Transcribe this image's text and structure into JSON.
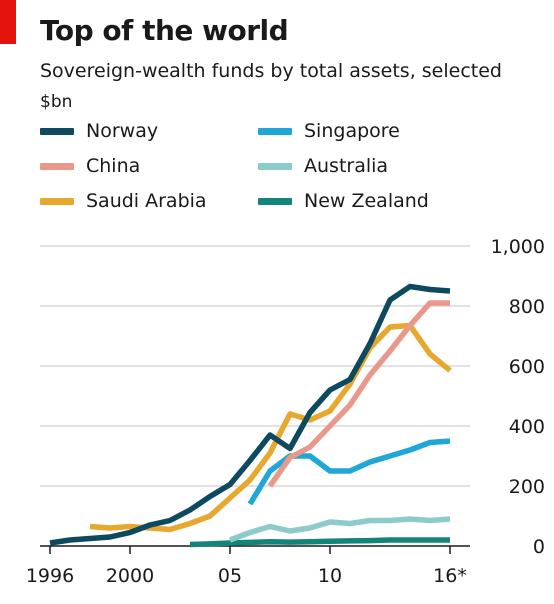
{
  "header": {
    "title": "Top of the world",
    "subtitle": "Sovereign-wealth funds by total assets, selected",
    "unit": "$bn"
  },
  "colors": {
    "accent_red": "#e3120b",
    "grid": "#d9d9d9",
    "axis": "#1a1a1a"
  },
  "chart_data": {
    "type": "line",
    "title": "Top of the world",
    "subtitle": "Sovereign-wealth funds by total assets, selected",
    "ylabel": "$bn",
    "xlim": [
      1995.5,
      2017
    ],
    "ylim": [
      0,
      1000
    ],
    "y_ticks": [
      0,
      200,
      400,
      600,
      800,
      1000
    ],
    "y_tick_labels": [
      "0",
      "200",
      "400",
      "600",
      "800",
      "1,000"
    ],
    "x_ticks": [
      1996,
      2000,
      2005,
      2010,
      2016
    ],
    "x_tick_labels": [
      "1996",
      "2000",
      "05",
      "10",
      "16*"
    ],
    "grid": true,
    "legend_position": "top-left, two columns",
    "series": [
      {
        "name": "Norway",
        "color": "#0d4a5f",
        "x": [
          1996,
          1997,
          1998,
          1999,
          2000,
          2001,
          2002,
          2003,
          2004,
          2005,
          2006,
          2007,
          2008,
          2009,
          2010,
          2011,
          2012,
          2013,
          2014,
          2015,
          2016
        ],
        "values": [
          10,
          20,
          25,
          30,
          45,
          70,
          85,
          120,
          165,
          205,
          285,
          370,
          325,
          445,
          520,
          555,
          675,
          820,
          865,
          855,
          850
        ]
      },
      {
        "name": "China",
        "color": "#e9998b",
        "x": [
          2007,
          2008,
          2009,
          2010,
          2011,
          2012,
          2013,
          2014,
          2015,
          2016
        ],
        "values": [
          200,
          295,
          330,
          400,
          470,
          570,
          650,
          735,
          810,
          810
        ]
      },
      {
        "name": "Saudi Arabia",
        "color": "#e6a82e",
        "x": [
          1998,
          1999,
          2000,
          2001,
          2002,
          2003,
          2004,
          2005,
          2006,
          2007,
          2008,
          2009,
          2010,
          2011,
          2012,
          2013,
          2014,
          2015,
          2016
        ],
        "values": [
          65,
          60,
          65,
          60,
          55,
          75,
          100,
          160,
          220,
          310,
          440,
          420,
          450,
          540,
          660,
          730,
          735,
          640,
          585
        ]
      },
      {
        "name": "Singapore",
        "color": "#1fa7d8",
        "x": [
          2006,
          2007,
          2008,
          2009,
          2010,
          2011,
          2012,
          2013,
          2014,
          2015,
          2016
        ],
        "values": [
          140,
          250,
          300,
          300,
          250,
          250,
          280,
          300,
          320,
          345,
          350
        ]
      },
      {
        "name": "Australia",
        "color": "#8ccbc9",
        "x": [
          2005,
          2006,
          2007,
          2008,
          2009,
          2010,
          2011,
          2012,
          2013,
          2014,
          2015,
          2016
        ],
        "values": [
          20,
          45,
          65,
          50,
          60,
          80,
          75,
          85,
          85,
          90,
          85,
          90
        ]
      },
      {
        "name": "New Zealand",
        "color": "#12857a",
        "x": [
          2003,
          2004,
          2005,
          2006,
          2007,
          2008,
          2009,
          2010,
          2011,
          2012,
          2013,
          2014,
          2015,
          2016
        ],
        "values": [
          5,
          7,
          10,
          12,
          14,
          13,
          14,
          16,
          17,
          18,
          20,
          20,
          20,
          20
        ]
      }
    ]
  }
}
